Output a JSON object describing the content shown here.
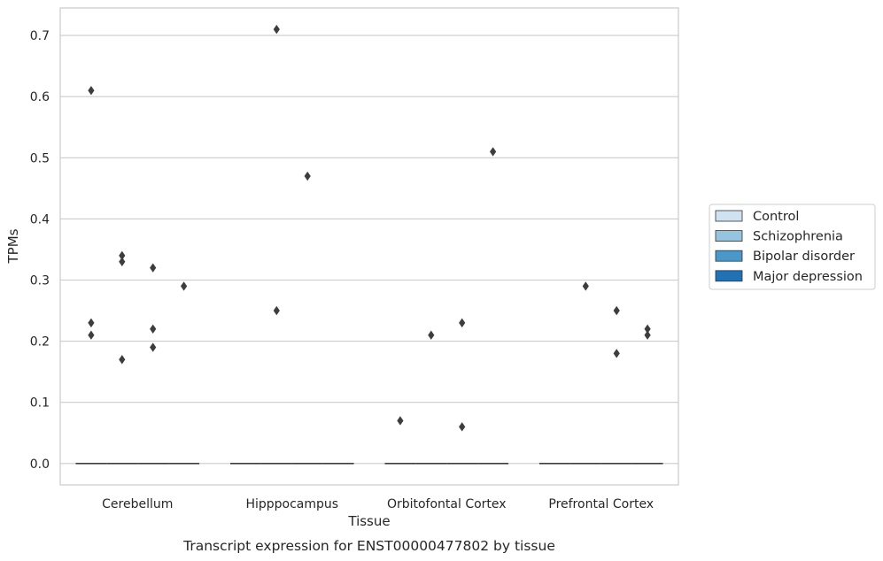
{
  "chart_data": {
    "type": "box",
    "caption": "Transcript expression for ENST00000477802 by tissue",
    "xlabel": "Tissue",
    "ylabel": "TPMs",
    "ylim": [
      -0.035,
      0.745
    ],
    "yticks": [
      "0.0",
      "0.1",
      "0.2",
      "0.3",
      "0.4",
      "0.5",
      "0.6",
      "0.7"
    ],
    "ytick_values": [
      0,
      0.1,
      0.2,
      0.3,
      0.4,
      0.5,
      0.6,
      0.7
    ],
    "grid": "horizontal",
    "legend_position": "right",
    "categories": [
      "Cerebellum",
      "Hipppocampus",
      "Orbitofontal Cortex",
      "Prefrontal Cortex"
    ],
    "series": [
      {
        "name": "Control",
        "color": "#d0e1f2",
        "median": [
          0,
          0,
          0,
          0
        ],
        "outliers": [
          [
            0.61,
            0.23,
            0.21
          ],
          [],
          [
            0.07
          ],
          []
        ]
      },
      {
        "name": "Schizophrenia",
        "color": "#94c4df",
        "median": [
          0,
          0,
          0,
          0
        ],
        "outliers": [
          [
            0.34,
            0.33,
            0.17
          ],
          [
            0.71,
            0.25
          ],
          [
            0.21
          ],
          [
            0.29
          ]
        ]
      },
      {
        "name": "Bipolar disorder",
        "color": "#4a98c9",
        "median": [
          0,
          0,
          0,
          0
        ],
        "outliers": [
          [
            0.32,
            0.22,
            0.19
          ],
          [
            0.47
          ],
          [
            0.23,
            0.06
          ],
          [
            0.25,
            0.18
          ]
        ]
      },
      {
        "name": "Major depression",
        "color": "#2171b5",
        "median": [
          0,
          0,
          0,
          0
        ],
        "outliers": [
          [
            0.29
          ],
          [],
          [
            0.51
          ],
          [
            0.22,
            0.21
          ]
        ]
      }
    ]
  }
}
